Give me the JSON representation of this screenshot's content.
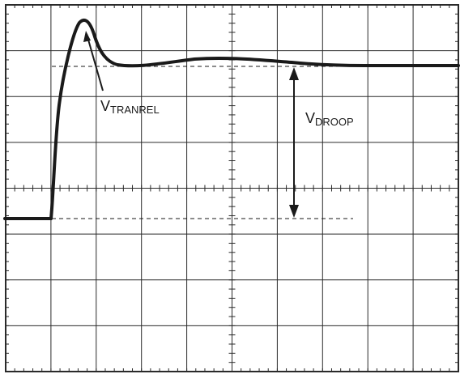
{
  "labels": {
    "tranrel": {
      "main": "V",
      "sub": "TRANREL"
    },
    "droop": {
      "main": "V",
      "sub": "DROOP"
    }
  },
  "colors": {
    "trace": "#1a1a1a",
    "grid": "#2a2a2a",
    "background": "#ffffff"
  },
  "grid": {
    "cols": 10,
    "rows": 8,
    "minor_ticks_per_div": 5
  }
}
